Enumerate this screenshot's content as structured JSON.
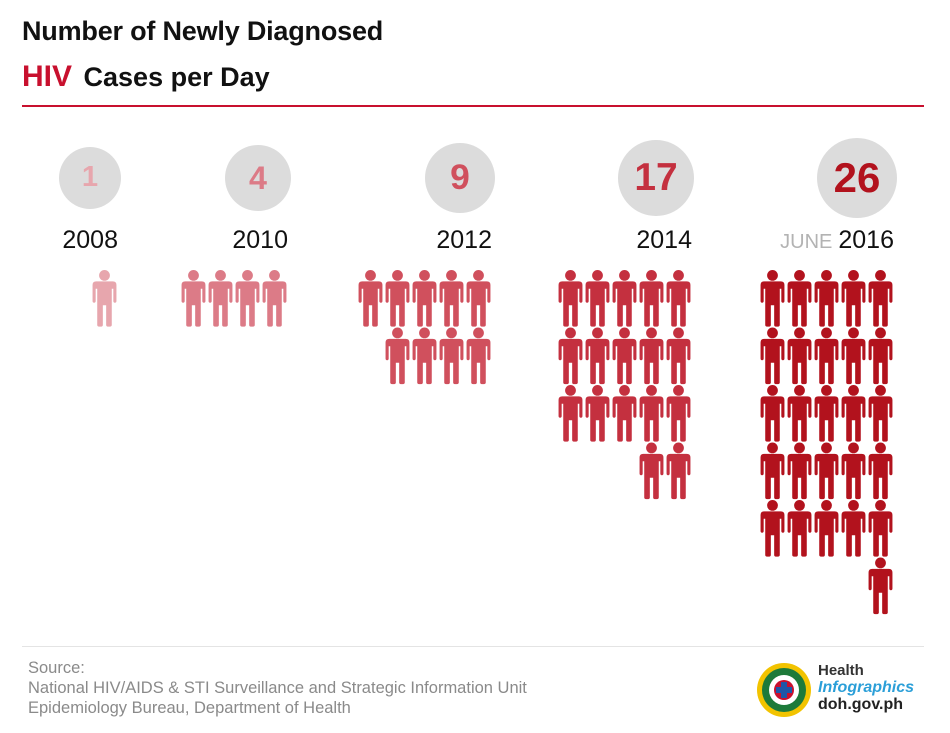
{
  "title": {
    "line1": "Number of Newly Diagnosed",
    "highlight": "HIV",
    "line2": "Cases per Day"
  },
  "chart_data": {
    "type": "pictograph",
    "x": [
      "2008",
      "2010",
      "2012",
      "2014",
      "2016"
    ],
    "x_prefix": [
      "",
      "",
      "",
      "",
      "JUNE"
    ],
    "values": [
      1,
      4,
      9,
      17,
      26
    ],
    "value_labels": [
      "1",
      "4",
      "9",
      "17",
      "26"
    ],
    "icon": "person-icon",
    "icons_per_row": 5,
    "colors": [
      "#e7a6ad",
      "#dc7b87",
      "#d0505d",
      "#c4303f",
      "#b2121d"
    ]
  },
  "source": {
    "label": "Source:",
    "line1": "National HIV/AIDS & STI Surveillance and Strategic Information Unit",
    "line2": "Epidemiology Bureau, Department of Health"
  },
  "brand": {
    "line1": "Health",
    "line2": "Infographics",
    "line3": "doh.gov.ph"
  }
}
